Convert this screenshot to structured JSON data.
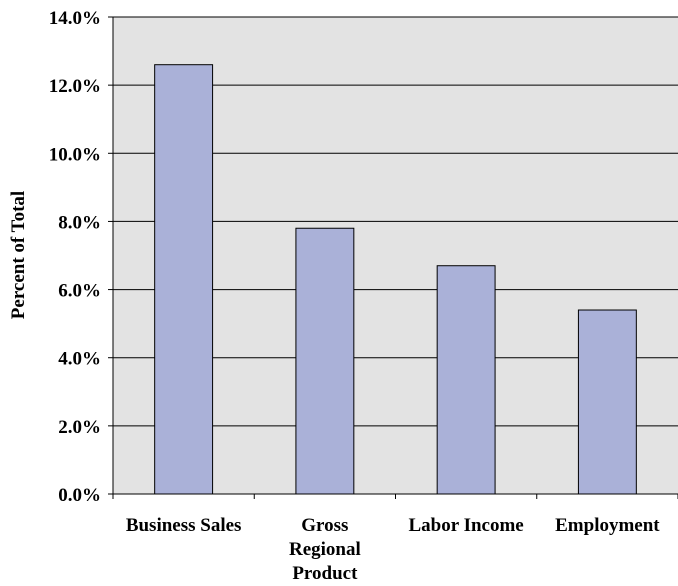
{
  "chart_data": {
    "type": "bar",
    "categories": [
      [
        "Business Sales"
      ],
      [
        "Gross",
        "Regional",
        "Product"
      ],
      [
        "Labor Income"
      ],
      [
        "Employment"
      ]
    ],
    "values": [
      12.6,
      7.8,
      6.7,
      5.4
    ],
    "title": "",
    "xlabel": "",
    "ylabel": "Percent of Total",
    "ylim": [
      0,
      14
    ],
    "yticks": [
      0,
      2,
      4,
      6,
      8,
      10,
      12,
      14
    ],
    "ytick_format": "%",
    "grid": true,
    "legend": "none",
    "colors": {
      "bar_fill": "#aab1d8",
      "bar_stroke": "#000000",
      "plot_bg": "#e3e3e3",
      "gridline": "#000000"
    }
  }
}
